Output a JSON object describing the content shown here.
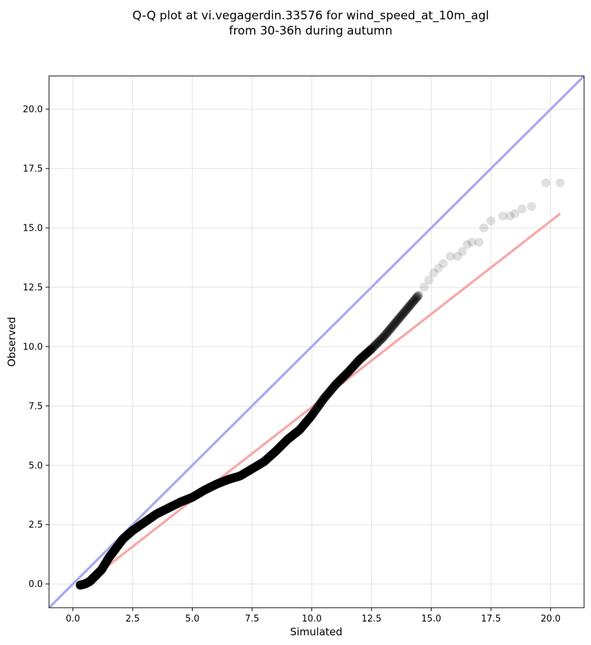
{
  "chart_data": {
    "type": "scatter",
    "title_line1": "Q-Q plot at vi.vegagerdin.33576 for wind_speed_at_10m_agl",
    "title_line2": "from 30-36h during autumn",
    "xlabel": "Simulated",
    "ylabel": "Observed",
    "xlim": [
      -1.0,
      21.4
    ],
    "ylim": [
      -1.0,
      21.4
    ],
    "xticks": [
      0.0,
      2.5,
      5.0,
      7.5,
      10.0,
      12.5,
      15.0,
      17.5,
      20.0
    ],
    "yticks": [
      0.0,
      2.5,
      5.0,
      7.5,
      10.0,
      12.5,
      15.0,
      17.5,
      20.0
    ],
    "tick_labels": [
      "0.0",
      "2.5",
      "5.0",
      "7.5",
      "10.0",
      "12.5",
      "15.0",
      "17.5",
      "20.0"
    ],
    "grid": true,
    "quantile_curve": {
      "x": [
        0.3,
        0.5,
        0.7,
        0.9,
        1.2,
        1.5,
        1.8,
        2.1,
        2.5,
        3.0,
        3.5,
        4.0,
        4.5,
        5.0,
        5.5,
        6.0,
        6.5,
        7.0,
        7.5,
        8.0,
        8.5,
        9.0,
        9.5,
        10.0,
        10.5,
        11.0,
        11.5,
        12.0,
        12.5,
        13.0,
        13.5,
        14.0,
        14.5
      ],
      "y": [
        -0.05,
        0.0,
        0.1,
        0.3,
        0.6,
        1.1,
        1.5,
        1.9,
        2.25,
        2.6,
        2.95,
        3.2,
        3.45,
        3.65,
        3.95,
        4.2,
        4.4,
        4.55,
        4.85,
        5.15,
        5.6,
        6.1,
        6.5,
        7.1,
        7.8,
        8.4,
        8.9,
        9.45,
        9.9,
        10.4,
        11.0,
        11.6,
        12.2
      ]
    },
    "tail_points": {
      "x": [
        14.7,
        14.9,
        15.1,
        15.3,
        15.5,
        15.8,
        16.1,
        16.3,
        16.5,
        16.7,
        17.0,
        17.2,
        17.5,
        18.0,
        18.3,
        18.5,
        18.8,
        19.2,
        19.8,
        20.4
      ],
      "y": [
        12.5,
        12.8,
        13.1,
        13.3,
        13.5,
        13.8,
        13.8,
        14.0,
        14.3,
        14.4,
        14.4,
        15.0,
        15.3,
        15.5,
        15.5,
        15.6,
        15.8,
        15.9,
        16.9,
        16.9
      ]
    },
    "identity_line": {
      "x": [
        -1.0,
        21.4
      ],
      "y": [
        -1.0,
        21.4
      ],
      "color": "#aaaaf0"
    },
    "fit_line": {
      "x": [
        0.3,
        20.4
      ],
      "y": [
        -0.15,
        15.6
      ],
      "color": "#f7a8a8"
    },
    "point_color": "#000000"
  }
}
